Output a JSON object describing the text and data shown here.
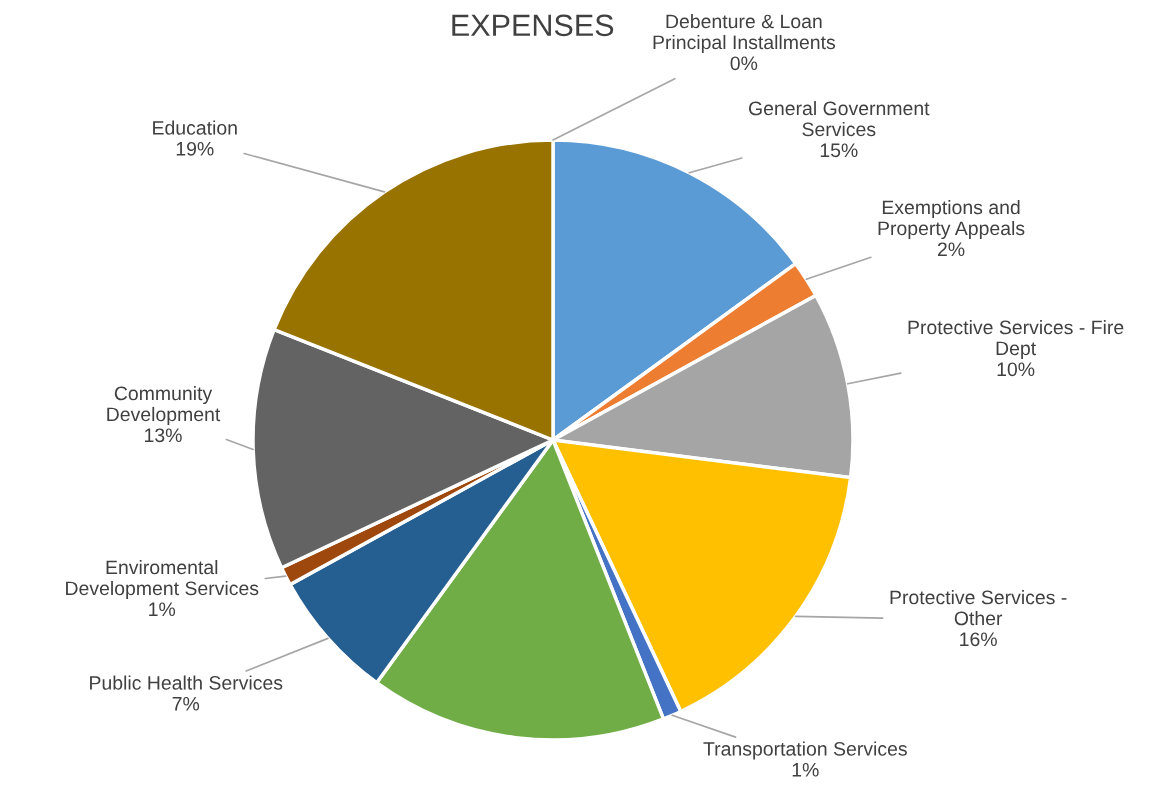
{
  "chart_data": {
    "type": "pie",
    "title": "EXPENSES",
    "categories": [
      "Debenture & Loan\nPrincipal Installments",
      "General Government\nServices",
      "Exemptions and\nProperty Appeals",
      "Protective Services - Fire\nDept",
      "Protective Services -\nOther",
      "Transportation Services",
      null,
      "Public Health Services",
      "Enviromental\nDevelopment Services",
      "Community\nDevelopment",
      "Education"
    ],
    "values": [
      0,
      15,
      2,
      10,
      16,
      1,
      16,
      7,
      1,
      13,
      19
    ],
    "value_labels": [
      "0%",
      "15%",
      "2%",
      "10%",
      "16%",
      "1%",
      null,
      "7%",
      "1%",
      "13%",
      "19%"
    ],
    "colors": [
      "#264478",
      "#5b9bd5",
      "#ed7d31",
      "#a5a5a5",
      "#ffc000",
      "#4472c4",
      "#70ad47",
      "#255e91",
      "#9e480e",
      "#636363",
      "#997300"
    ]
  }
}
